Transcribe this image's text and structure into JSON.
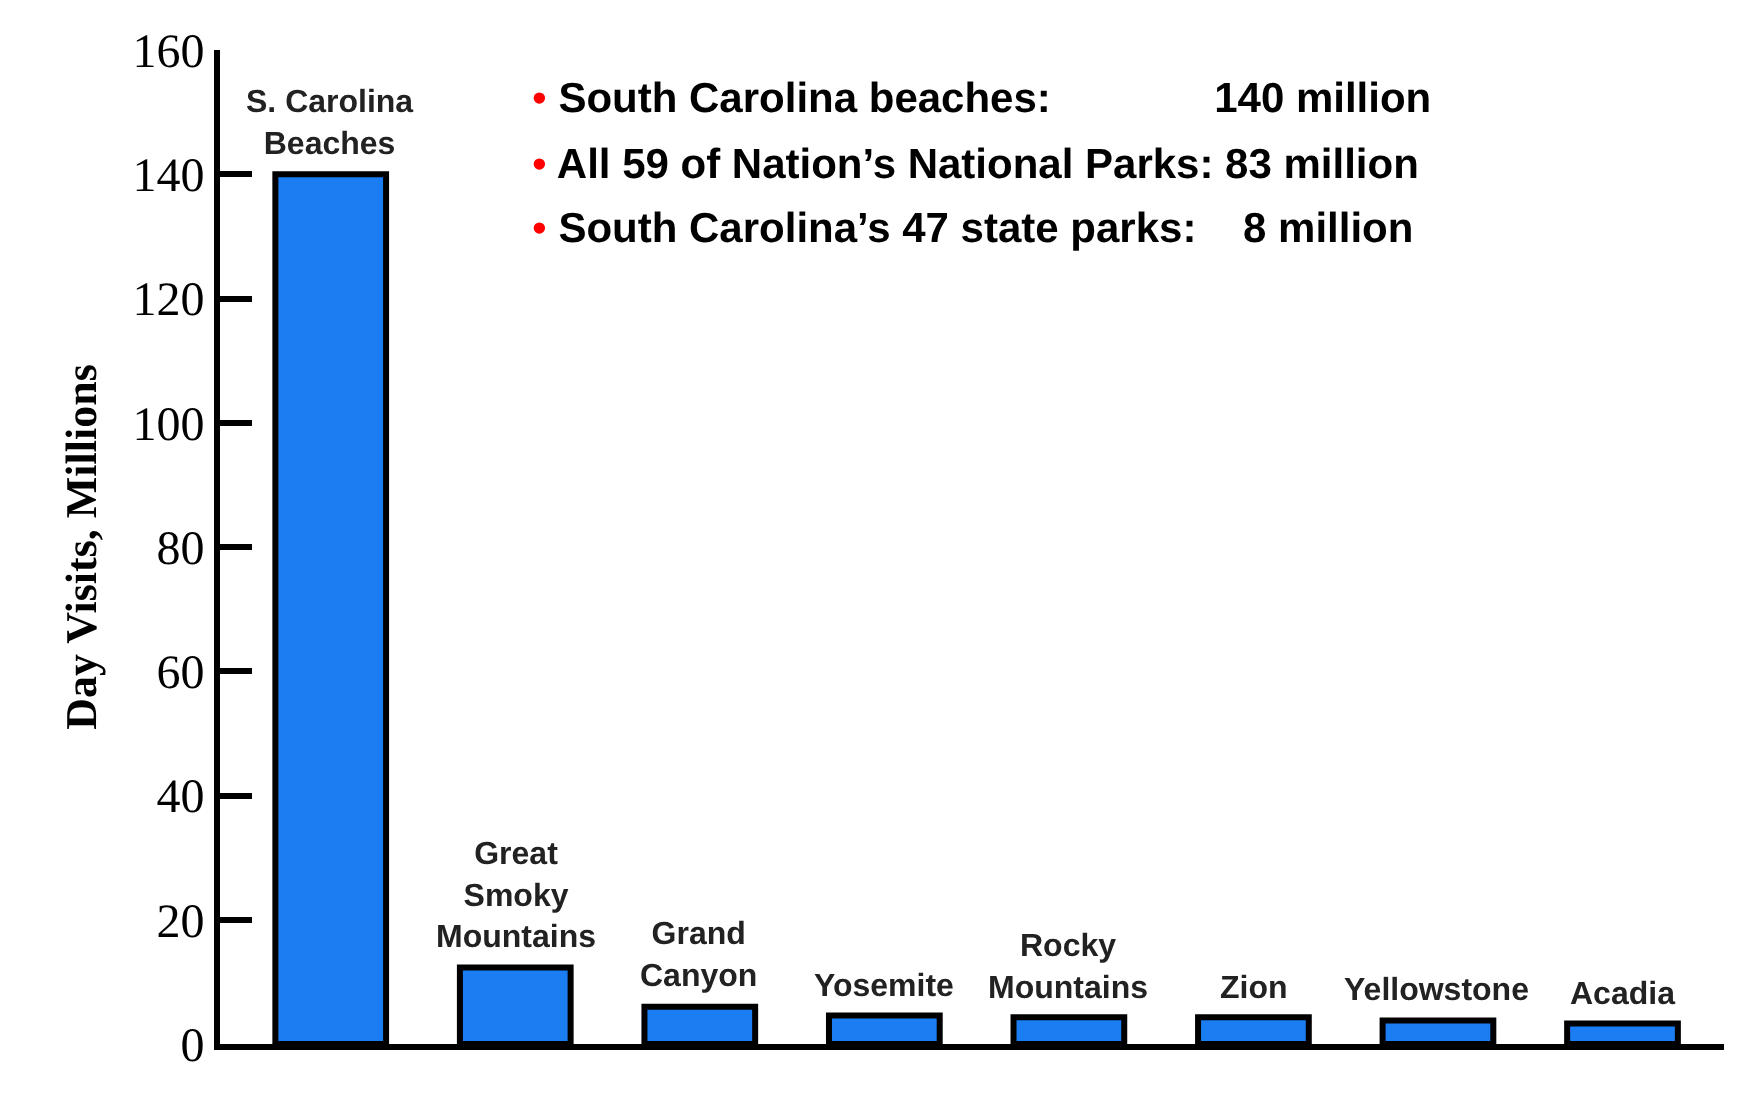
{
  "chart_data": {
    "type": "bar",
    "ylabel": "Day Visits, Millions",
    "categories": [
      "S. Carolina\nBeaches",
      "Great\nSmoky\nMountains",
      "Grand\nCanyon",
      "Yosemite",
      "Rocky\nMountains",
      "Zion",
      "Yellowstone",
      "Acadia"
    ],
    "values": [
      140,
      12.3,
      6,
      4.6,
      4.3,
      4.3,
      3.8,
      3.3
    ],
    "color": "#1a7ef2",
    "ylim": [
      0,
      160
    ],
    "yticks": [
      0,
      20,
      40,
      60,
      80,
      100,
      120,
      140,
      160
    ],
    "legend": false,
    "tick_labels": "y",
    "annotations": [
      "• South Carolina beaches:              140 million",
      "• All 59 of Nation’s National Parks: 83 million",
      "• South Carolina’s 47 state parks:    8 million"
    ]
  }
}
